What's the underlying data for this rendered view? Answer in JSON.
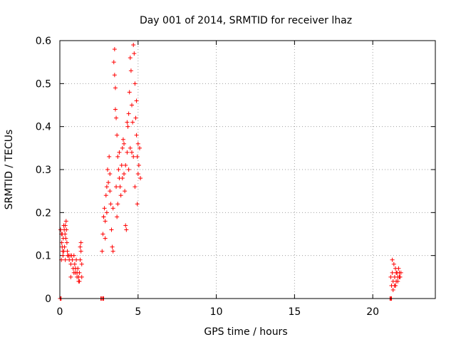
{
  "chart_data": {
    "type": "scatter",
    "title": "Day 001 of 2014, SRMTID for receiver lhaz",
    "xlabel": "GPS time / hours",
    "ylabel": "SRMTID / TECUs",
    "xlim": [
      0,
      24
    ],
    "ylim": [
      0,
      0.6
    ],
    "xticks": [
      0,
      5,
      10,
      15,
      20
    ],
    "yticks": [
      0,
      0.1,
      0.2,
      0.3,
      0.4,
      0.5,
      0.6
    ],
    "xtick_labels": [
      "0",
      "5",
      "10",
      "15",
      "20"
    ],
    "ytick_labels": [
      "0",
      "0.1",
      "0.2",
      "0.3",
      "0.4",
      "0.5",
      "0.6"
    ],
    "grid": true,
    "marker": "+",
    "color": "#ff0000",
    "series": [
      {
        "name": "SRMTID",
        "points": [
          [
            0.02,
            0.0
          ],
          [
            0.05,
            0.0
          ],
          [
            0.08,
            0.0
          ],
          [
            0.05,
            0.16
          ],
          [
            0.1,
            0.15
          ],
          [
            0.12,
            0.13
          ],
          [
            0.15,
            0.15
          ],
          [
            0.18,
            0.11
          ],
          [
            0.2,
            0.1
          ],
          [
            0.22,
            0.14
          ],
          [
            0.25,
            0.17
          ],
          [
            0.28,
            0.16
          ],
          [
            0.3,
            0.12
          ],
          [
            0.33,
            0.15
          ],
          [
            0.35,
            0.17
          ],
          [
            0.38,
            0.14
          ],
          [
            0.4,
            0.18
          ],
          [
            0.42,
            0.16
          ],
          [
            0.45,
            0.13
          ],
          [
            0.48,
            0.11
          ],
          [
            0.5,
            0.1
          ],
          [
            0.1,
            0.09
          ],
          [
            0.15,
            0.12
          ],
          [
            0.25,
            0.11
          ],
          [
            0.35,
            0.09
          ],
          [
            0.55,
            0.1
          ],
          [
            0.6,
            0.09
          ],
          [
            0.65,
            0.1
          ],
          [
            0.7,
            0.08
          ],
          [
            0.75,
            0.1
          ],
          [
            0.8,
            0.09
          ],
          [
            0.85,
            0.07
          ],
          [
            0.9,
            0.1
          ],
          [
            0.95,
            0.08
          ],
          [
            1.0,
            0.06
          ],
          [
            1.05,
            0.09
          ],
          [
            1.1,
            0.05
          ],
          [
            1.15,
            0.07
          ],
          [
            1.2,
            0.04
          ],
          [
            1.25,
            0.06
          ],
          [
            1.3,
            0.09
          ],
          [
            1.35,
            0.11
          ],
          [
            1.4,
            0.08
          ],
          [
            1.3,
            0.12
          ],
          [
            1.35,
            0.13
          ],
          [
            1.2,
            0.05
          ],
          [
            1.25,
            0.04
          ],
          [
            0.7,
            0.05
          ],
          [
            0.9,
            0.06
          ],
          [
            1.0,
            0.07
          ],
          [
            1.1,
            0.06
          ],
          [
            1.4,
            0.05
          ],
          [
            2.62,
            0.0
          ],
          [
            2.68,
            0.0
          ],
          [
            2.75,
            0.0
          ],
          [
            2.8,
            0.0
          ],
          [
            2.7,
            0.11
          ],
          [
            2.75,
            0.15
          ],
          [
            2.8,
            0.19
          ],
          [
            2.85,
            0.21
          ],
          [
            2.9,
            0.18
          ],
          [
            2.95,
            0.24
          ],
          [
            3.0,
            0.2
          ],
          [
            3.05,
            0.3
          ],
          [
            3.1,
            0.27
          ],
          [
            3.15,
            0.33
          ],
          [
            3.2,
            0.25
          ],
          [
            3.25,
            0.22
          ],
          [
            3.3,
            0.16
          ],
          [
            3.35,
            0.12
          ],
          [
            3.4,
            0.11
          ],
          [
            3.45,
            0.55
          ],
          [
            3.5,
            0.58
          ],
          [
            3.5,
            0.52
          ],
          [
            3.55,
            0.49
          ],
          [
            3.6,
            0.42
          ],
          [
            3.65,
            0.38
          ],
          [
            3.7,
            0.33
          ],
          [
            3.75,
            0.3
          ],
          [
            3.8,
            0.28
          ],
          [
            3.85,
            0.26
          ],
          [
            3.9,
            0.24
          ],
          [
            3.95,
            0.31
          ],
          [
            4.0,
            0.35
          ],
          [
            4.05,
            0.37
          ],
          [
            4.1,
            0.29
          ],
          [
            4.15,
            0.25
          ],
          [
            4.2,
            0.17
          ],
          [
            4.25,
            0.16
          ],
          [
            4.3,
            0.34
          ],
          [
            4.35,
            0.4
          ],
          [
            4.4,
            0.43
          ],
          [
            4.45,
            0.48
          ],
          [
            4.5,
            0.56
          ],
          [
            4.55,
            0.53
          ],
          [
            4.6,
            0.45
          ],
          [
            4.65,
            0.41
          ],
          [
            4.7,
            0.59
          ],
          [
            4.75,
            0.57
          ],
          [
            4.8,
            0.5
          ],
          [
            4.85,
            0.42
          ],
          [
            4.9,
            0.38
          ],
          [
            4.95,
            0.33
          ],
          [
            5.0,
            0.29
          ],
          [
            5.05,
            0.31
          ],
          [
            5.1,
            0.35
          ],
          [
            5.15,
            0.28
          ],
          [
            4.95,
            0.22
          ],
          [
            4.8,
            0.26
          ],
          [
            4.6,
            0.34
          ],
          [
            4.4,
            0.3
          ],
          [
            4.2,
            0.31
          ],
          [
            4.0,
            0.28
          ],
          [
            3.8,
            0.34
          ],
          [
            3.6,
            0.26
          ],
          [
            3.4,
            0.21
          ],
          [
            3.2,
            0.29
          ],
          [
            3.0,
            0.26
          ],
          [
            2.9,
            0.14
          ],
          [
            2.8,
            0.19
          ],
          [
            3.7,
            0.22
          ],
          [
            4.1,
            0.36
          ],
          [
            4.3,
            0.41
          ],
          [
            4.5,
            0.35
          ],
          [
            4.7,
            0.33
          ],
          [
            4.9,
            0.46
          ],
          [
            5.0,
            0.36
          ],
          [
            3.55,
            0.44
          ],
          [
            3.65,
            0.19
          ],
          [
            21.1,
            0.0
          ],
          [
            21.15,
            0.0
          ],
          [
            21.2,
            0.0
          ],
          [
            21.15,
            0.05
          ],
          [
            21.2,
            0.03
          ],
          [
            21.25,
            0.06
          ],
          [
            21.3,
            0.04
          ],
          [
            21.35,
            0.08
          ],
          [
            21.4,
            0.05
          ],
          [
            21.45,
            0.07
          ],
          [
            21.5,
            0.04
          ],
          [
            21.55,
            0.06
          ],
          [
            21.6,
            0.05
          ],
          [
            21.65,
            0.07
          ],
          [
            21.7,
            0.06
          ],
          [
            21.75,
            0.05
          ],
          [
            21.8,
            0.06
          ],
          [
            21.3,
            0.02
          ],
          [
            21.4,
            0.03
          ],
          [
            21.5,
            0.06
          ],
          [
            21.6,
            0.04
          ],
          [
            21.7,
            0.05
          ],
          [
            21.25,
            0.09
          ],
          [
            21.45,
            0.03
          ]
        ]
      }
    ]
  }
}
